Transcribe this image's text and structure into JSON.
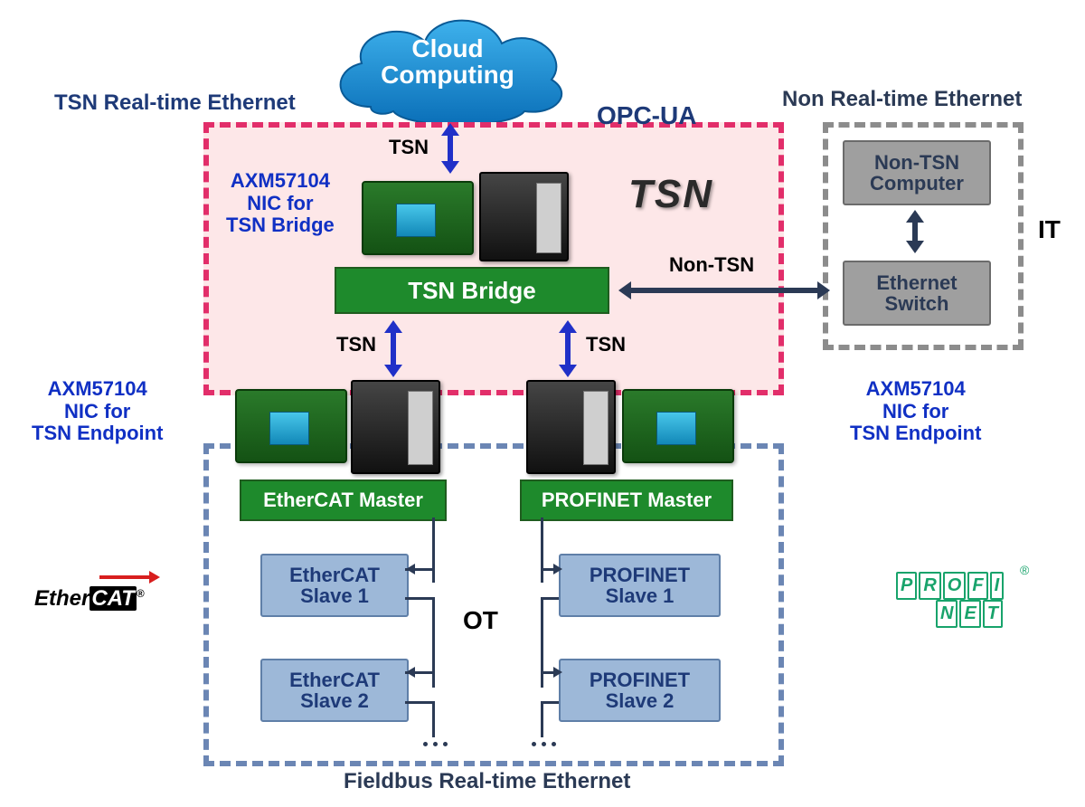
{
  "diagram": {
    "type": "network",
    "background_color": "#ffffff",
    "cloud": {
      "line1": "Cloud",
      "line2": "Computing",
      "fill_top": "#3eb1ec",
      "fill_bottom": "#0a6fb8",
      "text_color": "#ffffff",
      "fontsize": 28
    },
    "regions": {
      "tsn": {
        "title": "TSN Real-time Ethernet",
        "title_color": "#1e3a78",
        "border_color": "#e22e6a",
        "fill_color": "#fde7e8",
        "dash": "16 10",
        "border_width": 6,
        "badge_text": "TSN",
        "badge_color": "#2a2a2a",
        "opc_label": "OPC-UA",
        "opc_color": "#1e3a78"
      },
      "non_tsn": {
        "title": "Non Real-time Ethernet",
        "title_color": "#2b3a55",
        "border_color": "#8c8c8c",
        "dash": "16 10",
        "border_width": 6,
        "side_label": "IT",
        "side_label_color": "#000000"
      },
      "ot": {
        "title": "Fieldbus Real-time Ethernet",
        "title_color": "#2b3a55",
        "border_color": "#6b86b4",
        "dash": "16 10",
        "border_width": 6,
        "center_label": "OT",
        "center_label_color": "#000000"
      }
    },
    "blocks": {
      "tsn_bridge": {
        "label": "TSN Bridge",
        "fill": "#1e8a2c",
        "text_color": "#ffffff",
        "fontsize": 26
      },
      "ethercat_master": {
        "label": "EtherCAT Master",
        "fill": "#1e8a2c",
        "text_color": "#ffffff",
        "fontsize": 22
      },
      "profinet_master": {
        "label": "PROFINET Master",
        "fill": "#1e8a2c",
        "text_color": "#ffffff",
        "fontsize": 22
      },
      "non_tsn_computer": {
        "line1": "Non-TSN",
        "line2": "Computer",
        "fill": "#9f9f9f",
        "text_color": "#2b3a55",
        "border": "#6b6b6b",
        "fontsize": 22
      },
      "eth_switch": {
        "line1": "Ethernet",
        "line2": "Switch",
        "fill": "#9f9f9f",
        "text_color": "#2b3a55",
        "border": "#6b6b6b",
        "fontsize": 22
      },
      "ec_slave1": {
        "line1": "EtherCAT",
        "line2": "Slave 1",
        "fill": "#9db8d8",
        "text_color": "#1e3a78",
        "border": "#5f7fa8",
        "fontsize": 22
      },
      "ec_slave2": {
        "line1": "EtherCAT",
        "line2": "Slave 2",
        "fill": "#9db8d8",
        "text_color": "#1e3a78",
        "border": "#5f7fa8",
        "fontsize": 22
      },
      "pn_slave1": {
        "line1": "PROFINET",
        "line2": "Slave 1",
        "fill": "#9db8d8",
        "text_color": "#1e3a78",
        "border": "#5f7fa8",
        "fontsize": 22
      },
      "pn_slave2": {
        "line1": "PROFINET",
        "line2": "Slave 2",
        "fill": "#9db8d8",
        "text_color": "#1e3a78",
        "border": "#5f7fa8",
        "fontsize": 22
      }
    },
    "annotations": {
      "nic_bridge": {
        "line1": "AXM57104",
        "line2": "NIC for",
        "line3": "TSN Bridge",
        "color": "#1030c4",
        "fontsize": 22
      },
      "nic_endpoint_left": {
        "line1": "AXM57104",
        "line2": "NIC for",
        "line3": "TSN Endpoint",
        "color": "#1030c4",
        "fontsize": 22
      },
      "nic_endpoint_right": {
        "line1": "AXM57104",
        "line2": "NIC for",
        "line3": "TSN Endpoint",
        "color": "#1030c4",
        "fontsize": 22
      }
    },
    "arrows": {
      "tsn_color": "#2030c8",
      "dark_color": "#2b3a55",
      "label_tsn": "TSN",
      "label_non_tsn": "Non-TSN",
      "label_color": "#000000",
      "label_fontsize": 22
    },
    "logos": {
      "ethercat": {
        "prefix": "Ether",
        "suffix": "CAT",
        "reg": "®",
        "color": "#000000",
        "arrow_color": "#d81e1e",
        "fontsize": 24
      },
      "profinet": {
        "line1_letters": [
          "P",
          "R",
          "O",
          "F",
          "I"
        ],
        "line2_letters": [
          "N",
          "E",
          "T"
        ],
        "reg": "®",
        "color": "#18a36b",
        "fontsize": 20
      }
    },
    "ellipsis_color": "#2b3a55"
  }
}
